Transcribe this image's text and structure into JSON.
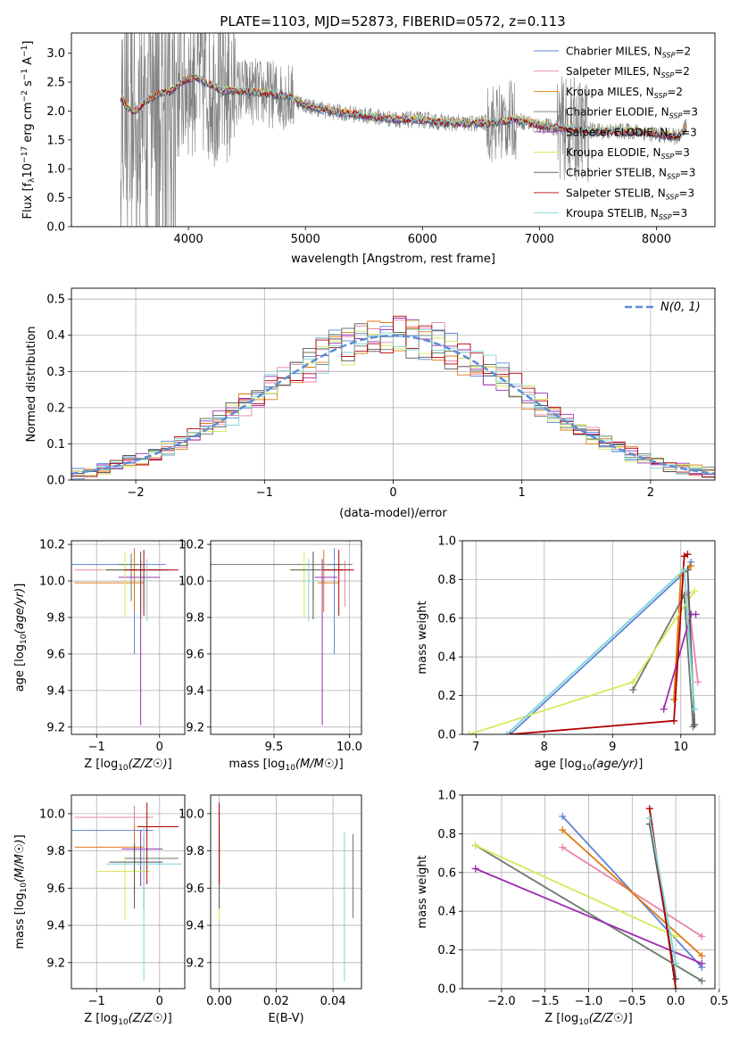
{
  "figure": {
    "title": "PLATE=1103, MJD=52873, FIBERID=0572, z=0.113"
  },
  "legend_labels": [
    "Chabrier MILES, N",
    "Salpeter MILES, N",
    "Kroupa MILES, N",
    "Chabrier ELODIE, N",
    "Salpeter ELODIE, N",
    "Kroupa ELODIE, N",
    "Chabrier STELIB, N",
    "Salpeter STELIB, N",
    "Kroupa STELIB, N"
  ],
  "colors": {
    "models": [
      "#5b84d6",
      "#e884a8",
      "#e07a10",
      "#6a7a6a",
      "#9a2fb0",
      "#d4ea5a",
      "#555555",
      "#b00000",
      "#7fd4d8"
    ],
    "data": "#808080",
    "gauss": "#5b8fd6",
    "grid": "#b0b0b0"
  },
  "chart_data": [
    {
      "type": "line",
      "title": "PLATE=1103, MJD=52873, FIBERID=0572, z=0.113",
      "xlabel": "wavelength [Angstrom, rest frame]",
      "ylabel_main": "Flux [f",
      "ylabel_tail": "10",
      "ylabel_exp": "−17",
      "ylabel_rest": " erg cm",
      "xlim": [
        3000,
        8500
      ],
      "ylim": [
        0,
        3.35
      ],
      "xticks": [
        4000,
        5000,
        6000,
        7000,
        8000
      ],
      "yticks": [
        0.0,
        0.5,
        1.0,
        1.5,
        2.0,
        2.5,
        3.0
      ],
      "grid": false,
      "legend_loc": "upper right",
      "series": [
        {
          "name": "Chabrier MILES, NSSP=2",
          "ssp": "2"
        },
        {
          "name": "Salpeter MILES, NSSP=2",
          "ssp": "2"
        },
        {
          "name": "Kroupa MILES, NSSP=2",
          "ssp": "2"
        },
        {
          "name": "Chabrier ELODIE, NSSP=3",
          "ssp": "3"
        },
        {
          "name": "Salpeter ELODIE, NSSP=3",
          "ssp": "3"
        },
        {
          "name": "Kroupa ELODIE, NSSP=3",
          "ssp": "3"
        },
        {
          "name": "Chabrier STELIB, NSSP=3",
          "ssp": "3"
        },
        {
          "name": "Salpeter STELIB, NSSP=3",
          "ssp": "3"
        },
        {
          "name": "Kroupa STELIB, NSSP=3",
          "ssp": "3"
        }
      ],
      "model_continuum": [
        [
          3420,
          2.25
        ],
        [
          3480,
          2.05
        ],
        [
          3550,
          2.0
        ],
        [
          3650,
          2.2
        ],
        [
          3750,
          2.3
        ],
        [
          3850,
          2.35
        ],
        [
          3950,
          2.5
        ],
        [
          4050,
          2.6
        ],
        [
          4150,
          2.5
        ],
        [
          4300,
          2.35
        ],
        [
          4500,
          2.35
        ],
        [
          4700,
          2.3
        ],
        [
          4860,
          2.25
        ],
        [
          5000,
          2.1
        ],
        [
          5200,
          2.0
        ],
        [
          5400,
          1.95
        ],
        [
          5600,
          1.9
        ],
        [
          5800,
          1.85
        ],
        [
          6000,
          1.85
        ],
        [
          6200,
          1.8
        ],
        [
          6400,
          1.78
        ],
        [
          6600,
          1.8
        ],
        [
          6800,
          1.85
        ],
        [
          7000,
          1.75
        ],
        [
          7200,
          1.7
        ],
        [
          7500,
          1.65
        ],
        [
          7800,
          1.65
        ],
        [
          8000,
          1.6
        ],
        [
          8200,
          1.55
        ],
        [
          8260,
          1.75
        ]
      ]
    },
    {
      "type": "line",
      "xlabel": "(data-model)/error",
      "ylabel": "Normed distribution",
      "xlim": [
        -2.5,
        2.5
      ],
      "ylim": [
        0,
        0.53
      ],
      "xticks": [
        -2,
        -1,
        0,
        1,
        2
      ],
      "yticks": [
        0.0,
        0.1,
        0.2,
        0.3,
        0.4,
        0.5
      ],
      "grid": true,
      "legend_loc": "upper right",
      "legend_label": "N(0,1)",
      "gauss": {
        "mean": 0,
        "sigma": 1
      },
      "bin_width": 0.1
    },
    {
      "type": "scatter",
      "xlabel": "Z [log",
      "ylabel": "age  [log",
      "xlim": [
        -1.4,
        0.4
      ],
      "ylim": [
        9.16,
        10.22
      ],
      "xticks": [
        -1,
        0
      ],
      "yticks": [
        9.2,
        9.4,
        9.6,
        9.8,
        10.0,
        10.2
      ],
      "grid": true,
      "points": [
        {
          "x": -0.4,
          "y": 10.09,
          "xerr": [
            1.0,
            0.5
          ],
          "yerr": [
            0.49,
            0.09
          ]
        },
        {
          "x": -0.3,
          "y": 10.06,
          "xerr": [
            1.05,
            0.3
          ],
          "yerr": [
            0.2,
            0.05
          ]
        },
        {
          "x": -0.4,
          "y": 9.99,
          "xerr": [
            0.95,
            0.15
          ],
          "yerr": [
            0.16,
            0.18
          ]
        },
        {
          "x": -0.45,
          "y": 10.09,
          "xerr": [
            0.2,
            0.22
          ],
          "yerr": [
            0.2,
            0.06
          ]
        },
        {
          "x": -0.3,
          "y": 10.02,
          "xerr": [
            0.35,
            0.3
          ],
          "yerr": [
            0.81,
            0.1
          ]
        },
        {
          "x": -0.55,
          "y": 10.06,
          "xerr": [
            0.35,
            0.3
          ],
          "yerr": [
            0.26,
            0.1
          ]
        },
        {
          "x": -0.3,
          "y": 10.06,
          "xerr": [
            0.55,
            0.45
          ],
          "yerr": [
            0.27,
            0.1
          ]
        },
        {
          "x": -0.25,
          "y": 10.06,
          "xerr": [
            0.3,
            0.55
          ],
          "yerr": [
            0.25,
            0.11
          ]
        },
        {
          "x": -0.2,
          "y": 10.0,
          "xerr": [
            0.05,
            0.05
          ],
          "yerr": [
            0.22,
            0.12
          ]
        }
      ]
    },
    {
      "type": "scatter",
      "xlabel": "mass [log",
      "ylabel": "",
      "xlim": [
        9.08,
        10.08
      ],
      "ylim": [
        9.16,
        10.22
      ],
      "xticks": [
        9.5,
        10.0
      ],
      "yticks": [
        9.2,
        9.4,
        9.6,
        9.8,
        10.0,
        10.2
      ],
      "grid": true,
      "points": [
        {
          "x": 9.9,
          "y": 10.09,
          "xerr": [
            0.05,
            0.05
          ],
          "yerr": [
            0.49,
            0.09
          ]
        },
        {
          "x": 9.97,
          "y": 10.06,
          "xerr": [
            0.1,
            0.06
          ],
          "yerr": [
            0.2,
            0.05
          ]
        },
        {
          "x": 9.83,
          "y": 9.99,
          "xerr": [
            0.04,
            0.1
          ],
          "yerr": [
            0.16,
            0.18
          ]
        },
        {
          "x": 9.76,
          "y": 10.09,
          "xerr": [
            0.68,
            0.26
          ],
          "yerr": [
            0.2,
            0.06
          ]
        },
        {
          "x": 9.82,
          "y": 10.02,
          "xerr": [
            0.05,
            0.1
          ],
          "yerr": [
            0.81,
            0.1
          ]
        },
        {
          "x": 9.7,
          "y": 10.06,
          "xerr": [
            0.1,
            0.08
          ],
          "yerr": [
            0.26,
            0.1
          ]
        },
        {
          "x": 9.76,
          "y": 10.06,
          "xerr": [
            0.15,
            0.2
          ],
          "yerr": [
            0.27,
            0.1
          ]
        },
        {
          "x": 9.93,
          "y": 10.06,
          "xerr": [
            0.1,
            0.1
          ],
          "yerr": [
            0.25,
            0.11
          ]
        },
        {
          "x": 9.73,
          "y": 10.0,
          "xerr": [
            0.03,
            0.05
          ],
          "yerr": [
            0.22,
            0.12
          ]
        }
      ]
    },
    {
      "type": "line",
      "xlabel": "age  [log",
      "ylabel": "mass weight",
      "xlim": [
        6.8,
        10.5
      ],
      "ylim": [
        0,
        1.0
      ],
      "xticks": [
        7,
        8,
        9,
        10
      ],
      "yticks": [
        0.0,
        0.2,
        0.4,
        0.6,
        0.8,
        1.0
      ],
      "grid": true,
      "series": [
        {
          "x": [
            7.5,
            10.1,
            10.15
          ],
          "y": [
            0.0,
            0.85,
            0.89
          ]
        },
        {
          "x": [
            10.1,
            10.25
          ],
          "y": [
            0.73,
            0.27
          ]
        },
        {
          "x": [
            9.9,
            10.0,
            10.15
          ],
          "y": [
            0.18,
            0.82,
            0.87
          ]
        },
        {
          "x": [
            9.3,
            10.05,
            10.18
          ],
          "y": [
            0.23,
            0.72,
            0.04
          ]
        },
        {
          "x": [
            9.75,
            10.15,
            10.22
          ],
          "y": [
            0.13,
            0.62,
            0.62
          ]
        },
        {
          "x": [
            6.9,
            9.3,
            10.2
          ],
          "y": [
            0.0,
            0.27,
            0.74
          ]
        },
        {
          "x": [
            10.1,
            10.2
          ],
          "y": [
            0.85,
            0.05
          ]
        },
        {
          "x": [
            7.5,
            9.9,
            10.05,
            10.1
          ],
          "y": [
            0.0,
            0.07,
            0.92,
            0.93
          ]
        },
        {
          "x": [
            7.45,
            10.05,
            10.2
          ],
          "y": [
            0.0,
            0.85,
            0.13
          ]
        }
      ]
    },
    {
      "type": "scatter",
      "xlabel": "Z [log",
      "ylabel": "mass [log",
      "xlim": [
        -1.4,
        0.4
      ],
      "ylim": [
        9.06,
        10.1
      ],
      "xticks": [
        -1,
        0
      ],
      "yticks": [
        9.2,
        9.4,
        9.6,
        9.8,
        10.0
      ],
      "grid": true,
      "points": [
        {
          "x": -0.4,
          "y": 9.91,
          "xerr": [
            1.0,
            0.3
          ],
          "yerr": [
            0.2,
            0.13
          ]
        },
        {
          "x": -0.4,
          "y": 9.98,
          "xerr": [
            0.95,
            0.3
          ],
          "yerr": [
            0.2,
            0.05
          ]
        },
        {
          "x": -0.4,
          "y": 9.82,
          "xerr": [
            0.95,
            0.15
          ],
          "yerr": [
            0.25,
            0.12
          ]
        },
        {
          "x": -0.25,
          "y": 9.76,
          "xerr": [
            0.3,
            0.55
          ],
          "yerr": [
            0.27,
            0.12
          ]
        },
        {
          "x": -0.3,
          "y": 9.81,
          "xerr": [
            0.3,
            0.35
          ],
          "yerr": [
            0.2,
            0.1
          ]
        },
        {
          "x": -0.55,
          "y": 9.69,
          "xerr": [
            0.45,
            0.4
          ],
          "yerr": [
            0.26,
            0.08
          ]
        },
        {
          "x": -0.4,
          "y": 9.74,
          "xerr": [
            0.4,
            0.45
          ],
          "yerr": [
            0.25,
            0.1
          ]
        },
        {
          "x": -0.2,
          "y": 9.93,
          "xerr": [
            0.15,
            0.5
          ],
          "yerr": [
            0.31,
            0.13
          ]
        },
        {
          "x": -0.25,
          "y": 9.73,
          "xerr": [
            0.6,
            0.6
          ],
          "yerr": [
            0.63,
            0.2
          ]
        }
      ]
    },
    {
      "type": "scatter",
      "xlabel": "E(B-V)",
      "ylabel": "",
      "xlim": [
        -0.003,
        0.05
      ],
      "ylim": [
        9.06,
        10.1
      ],
      "xticks": [
        0.0,
        0.02,
        0.04
      ],
      "yticks": [
        9.2,
        9.4,
        9.6,
        9.8,
        10.0
      ],
      "grid": true,
      "points": [
        {
          "x": 0.0,
          "y": 9.91,
          "yerr": [
            0.2,
            0.13
          ]
        },
        {
          "x": 0.0,
          "y": 9.98,
          "yerr": [
            0.2,
            0.05
          ]
        },
        {
          "x": 0.0,
          "y": 9.82,
          "yerr": [
            0.25,
            0.12
          ]
        },
        {
          "x": 0.047,
          "y": 9.76,
          "yerr": [
            0.32,
            0.13
          ]
        },
        {
          "x": 0.0,
          "y": 9.81,
          "yerr": [
            0.2,
            0.1
          ]
        },
        {
          "x": 0.0,
          "y": 9.69,
          "yerr": [
            0.26,
            0.08
          ]
        },
        {
          "x": 0.0,
          "y": 9.74,
          "yerr": [
            0.25,
            0.1
          ]
        },
        {
          "x": 0.0,
          "y": 9.93,
          "yerr": [
            0.31,
            0.13
          ]
        },
        {
          "x": 0.044,
          "y": 9.5,
          "yerr": [
            0.4,
            0.4
          ]
        }
      ]
    },
    {
      "type": "line",
      "xlabel": "Z [log",
      "ylabel": "mass weight",
      "xlim": [
        -2.45,
        0.45
      ],
      "ylim": [
        0,
        1.0
      ],
      "xticks": [
        -2.0,
        -1.5,
        -1.0,
        -0.5,
        0.0,
        0.5
      ],
      "yticks": [
        0.0,
        0.2,
        0.4,
        0.6,
        0.8,
        1.0
      ],
      "grid": true,
      "series": [
        {
          "x": [
            -1.3,
            0.3
          ],
          "y": [
            0.89,
            0.11
          ]
        },
        {
          "x": [
            -1.3,
            0.3
          ],
          "y": [
            0.73,
            0.27
          ]
        },
        {
          "x": [
            -1.3,
            0.3
          ],
          "y": [
            0.82,
            0.17
          ]
        },
        {
          "x": [
            -2.3,
            0.3
          ],
          "y": [
            0.74,
            0.04
          ]
        },
        {
          "x": [
            -2.3,
            0.3
          ],
          "y": [
            0.62,
            0.13
          ]
        },
        {
          "x": [
            -2.3,
            0.0
          ],
          "y": [
            0.74,
            0.27
          ]
        },
        {
          "x": [
            -0.3,
            0.0
          ],
          "y": [
            0.85,
            0.05
          ]
        },
        {
          "x": [
            -0.3,
            0.0
          ],
          "y": [
            0.93,
            0.0
          ]
        },
        {
          "x": [
            -0.3,
            0.0
          ],
          "y": [
            0.88,
            0.13
          ]
        }
      ]
    }
  ]
}
